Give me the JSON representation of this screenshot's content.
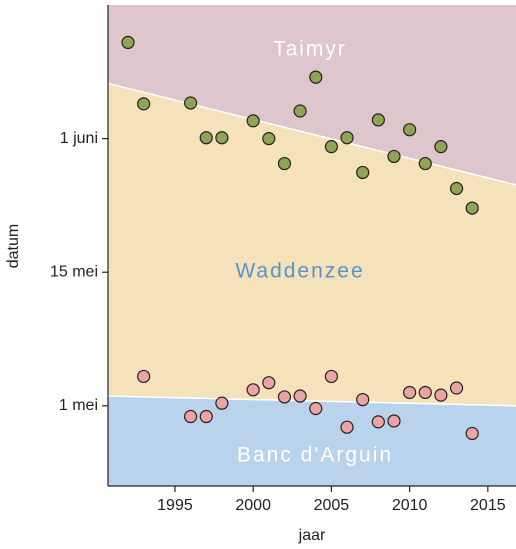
{
  "chart_data": {
    "type": "scatter",
    "x_label": "jaar",
    "y_label": "datum",
    "xlim": [
      1990.72,
      2016.8
    ],
    "ylim": [
      -9,
      45
    ],
    "xticks": [
      1995,
      2000,
      2005,
      2010,
      2015
    ],
    "yticks": [
      {
        "value": 0,
        "label": "1 mei"
      },
      {
        "value": 15,
        "label": "15 mei"
      },
      {
        "value": 30,
        "label": "1 juni"
      }
    ],
    "boundaries": [
      {
        "x": [
          1990.72,
          2016.8
        ],
        "y": [
          36.2,
          24.8
        ]
      },
      {
        "x": [
          1990.72,
          2016.8
        ],
        "y": [
          1.1,
          0.0
        ]
      }
    ],
    "regions": [
      {
        "name": "Taimyr",
        "color": "#dfc5cc",
        "label_color": "#ffffff"
      },
      {
        "name": "Waddenzee",
        "color": "#f5e2bb",
        "label_color": "#5b93c8"
      },
      {
        "name": "Banc d'Arguin",
        "color": "#b9d3ec",
        "label_color": "#ffffff"
      }
    ],
    "series": [
      {
        "color": "#8fa455",
        "x": [
          1992,
          1993,
          1996,
          1997,
          1998,
          2000,
          2001,
          2002,
          2003,
          2004,
          2005,
          2006,
          2007,
          2008,
          2009,
          2010,
          2011,
          2012,
          2013,
          2014
        ],
        "values": [
          40.8,
          33.9,
          34.0,
          30.1,
          30.1,
          32.0,
          30.0,
          27.2,
          33.1,
          36.9,
          29.1,
          30.1,
          26.2,
          32.1,
          28.0,
          31.0,
          27.2,
          29.1,
          24.4,
          22.2
        ]
      },
      {
        "color": "#eca3a3",
        "x": [
          1993,
          1996,
          1997,
          1998,
          2000,
          2001,
          2002,
          2003,
          2004,
          2005,
          2006,
          2007,
          2008,
          2009,
          2010,
          2011,
          2012,
          2013,
          2014
        ],
        "values": [
          3.3,
          -1.2,
          -1.2,
          0.3,
          1.8,
          2.6,
          1.0,
          1.1,
          -0.3,
          3.3,
          -2.4,
          0.7,
          -1.8,
          -1.7,
          1.5,
          1.5,
          1.2,
          2.0,
          -3.1
        ]
      }
    ]
  }
}
